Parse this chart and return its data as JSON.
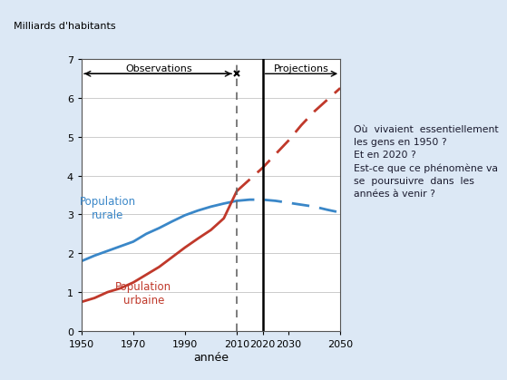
{
  "ylabel": "Milliards d'habitants",
  "xlabel": "année",
  "xlim": [
    1950,
    2050
  ],
  "ylim": [
    0,
    7
  ],
  "yticks": [
    0,
    1,
    2,
    3,
    4,
    5,
    6,
    7
  ],
  "xticks": [
    1950,
    1970,
    1990,
    2010,
    2020,
    2030,
    2050
  ],
  "vline_dashed_x": 2010,
  "vline_solid_x": 2020,
  "obs_label": "Observations",
  "proj_label": "Projections",
  "rural_label": "Population\nrurale",
  "urban_label": "Population\nurbaine",
  "rural_color": "#3a87c8",
  "urban_color": "#c0392b",
  "bg_color": "#dce8f5",
  "chart_bg": "#ffffff",
  "right_panel_bg": "#c8d8ee",
  "right_text": "Où  vivaient  essentiellement\nles gens en 1950 ?\nEt en 2020 ?\nEst-ce que ce phénomène va\nse  poursuivre  dans  les\nannées à venir ?",
  "rural_obs_x": [
    1950,
    1955,
    1960,
    1965,
    1970,
    1975,
    1980,
    1985,
    1990,
    1995,
    2000,
    2005,
    2010
  ],
  "rural_obs_y": [
    1.8,
    1.94,
    2.06,
    2.18,
    2.3,
    2.5,
    2.65,
    2.82,
    2.98,
    3.1,
    3.2,
    3.28,
    3.35
  ],
  "rural_proj_x": [
    2010,
    2015,
    2020,
    2025,
    2030,
    2035,
    2040,
    2045,
    2050
  ],
  "rural_proj_y": [
    3.35,
    3.38,
    3.38,
    3.35,
    3.3,
    3.25,
    3.2,
    3.12,
    3.05
  ],
  "urban_obs_x": [
    1950,
    1955,
    1960,
    1965,
    1970,
    1975,
    1980,
    1985,
    1990,
    1995,
    2000,
    2005,
    2010
  ],
  "urban_obs_y": [
    0.75,
    0.85,
    1.0,
    1.1,
    1.25,
    1.45,
    1.65,
    1.9,
    2.15,
    2.38,
    2.6,
    2.9,
    3.6
  ],
  "urban_proj_x": [
    2010,
    2015,
    2020,
    2025,
    2030,
    2035,
    2040,
    2045,
    2050
  ],
  "urban_proj_y": [
    3.6,
    3.9,
    4.2,
    4.55,
    4.9,
    5.3,
    5.65,
    5.95,
    6.25
  ]
}
